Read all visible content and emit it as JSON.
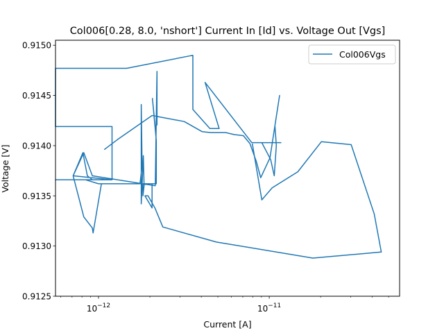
{
  "chart_data": {
    "type": "line",
    "title": "Col006[0.28, 8.0, 'nshort'] Current In [Id] vs. Voltage Out [Vgs]",
    "xlabel": "Current [A]",
    "ylabel": "Voltage [V]",
    "xscale": "log",
    "xlim": [
      5.6e-13,
      5.8e-11
    ],
    "ylim": [
      0.9125,
      0.91505
    ],
    "xticks": [
      {
        "value": 1e-12,
        "base": "10",
        "exp": "−12"
      },
      {
        "value": 1e-11,
        "base": "10",
        "exp": "−11"
      }
    ],
    "yticks": [
      {
        "value": 0.9125,
        "label": "0.9125"
      },
      {
        "value": 0.913,
        "label": "0.9130"
      },
      {
        "value": 0.9135,
        "label": "0.9135"
      },
      {
        "value": 0.914,
        "label": "0.9140"
      },
      {
        "value": 0.9145,
        "label": "0.9145"
      },
      {
        "value": 0.915,
        "label": "0.9150"
      }
    ],
    "grid": false,
    "legend_position": "top-right",
    "colors": {
      "series": "#1f77b4"
    },
    "series": [
      {
        "name": "Col006Vgs",
        "x": [
          1.08e-12,
          1.29e-12,
          2.06e-12,
          3.18e-12,
          4.04e-12,
          4.54e-12,
          5.57e-12,
          6.23e-12,
          7.05e-12,
          7.71e-12,
          8.41e-12,
          8.91e-12,
          1.01e-11,
          1.15e-11,
          1.08e-11,
          1.1e-11,
          1.07e-11,
          1.02e-11,
          9.05e-12,
          7.96e-12,
          1.17e-11,
          7.9e-12,
          4.21e-12,
          5.09e-12,
          4.49e-12,
          3.57e-12,
          3.57e-12,
          3.57e-12,
          1.46e-12,
          5.6e-13,
          5.6e-13,
          1.2e-12,
          1.2e-12,
          5.6e-13,
          5.6e-13,
          1.2e-12,
          1.2e-12,
          7.1e-13,
          8.2e-13,
          9.2e-13,
          2.15e-12,
          2.2e-12,
          2.2e-12,
          2.15e-12,
          2.07e-12,
          2.07e-12,
          2.18e-12,
          2.18e-12,
          2.15e-12,
          1.82e-12,
          1.82e-12,
          1.85e-12,
          1.83e-12,
          1.78e-12,
          1.78e-12,
          1.8e-12,
          1.75e-12,
          1.04e-12,
          1.04e-12,
          9.3e-13,
          9.2e-13,
          8.2e-13,
          7.1e-13,
          8.1e-13,
          8.6e-13,
          9.2e-13,
          9.3e-13,
          8.6e-13,
          8.4e-13,
          1e-12,
          2.06e-12,
          2.06e-12,
          2.06e-12,
          2.06e-12,
          1.87e-12,
          1.95e-12,
          2.14e-12,
          2.38e-12,
          4.9e-12,
          1.8e-11,
          4.53e-11,
          4.12e-11,
          3.02e-11,
          2.02e-11,
          1.47e-11,
          1.04e-11,
          9.05e-12,
          7.96e-12
        ],
        "y": [
          0.91396,
          0.91406,
          0.9143,
          0.91424,
          0.91414,
          0.91413,
          0.91413,
          0.91411,
          0.9141,
          0.91402,
          0.91384,
          0.91368,
          0.91388,
          0.9145,
          0.9142,
          0.914,
          0.9137,
          0.91386,
          0.91403,
          0.91403,
          0.91403,
          0.91403,
          0.91463,
          0.91417,
          0.91417,
          0.91436,
          0.91436,
          0.9149,
          0.91477,
          0.91477,
          0.91419,
          0.91419,
          0.91366,
          0.91366,
          0.91366,
          0.91366,
          0.91366,
          0.9137,
          0.91393,
          0.9137,
          0.9136,
          0.91474,
          0.91421,
          0.91418,
          0.91447,
          0.91447,
          0.91405,
          0.91362,
          0.91362,
          0.91362,
          0.9135,
          0.9136,
          0.9139,
          0.91342,
          0.91441,
          0.9138,
          0.91362,
          0.91362,
          0.91362,
          0.91313,
          0.91318,
          0.91329,
          0.9137,
          0.91393,
          0.9137,
          0.91366,
          0.91366,
          0.91366,
          0.91366,
          0.91362,
          0.91362,
          0.91362,
          0.91362,
          0.91338,
          0.9135,
          0.9135,
          0.91338,
          0.91319,
          0.91304,
          0.91288,
          0.91294,
          0.91332,
          0.91401,
          0.91404,
          0.91374,
          0.91358,
          0.91346,
          0.91402
        ]
      }
    ]
  }
}
